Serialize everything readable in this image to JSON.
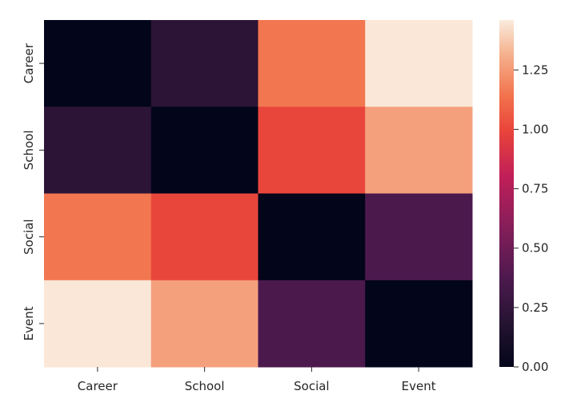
{
  "chart_data": {
    "type": "heatmap",
    "x_categories": [
      "Career",
      "School",
      "Social",
      "Event"
    ],
    "y_categories": [
      "Career",
      "School",
      "Social",
      "Event"
    ],
    "values": [
      [
        0.0,
        0.22,
        1.15,
        1.45
      ],
      [
        0.22,
        0.0,
        1.0,
        1.27
      ],
      [
        1.15,
        1.0,
        0.0,
        0.37
      ],
      [
        1.45,
        1.27,
        0.37,
        0.0
      ]
    ],
    "colorbar": {
      "min": 0.0,
      "max": 1.46,
      "ticks": [
        0.0,
        0.25,
        0.5,
        0.75,
        1.0,
        1.25
      ],
      "tick_labels": [
        "0.00",
        "0.25",
        "0.50",
        "0.75",
        "1.00",
        "1.25"
      ]
    },
    "colormap": "rocket",
    "title": "",
    "xlabel": "",
    "ylabel": ""
  }
}
